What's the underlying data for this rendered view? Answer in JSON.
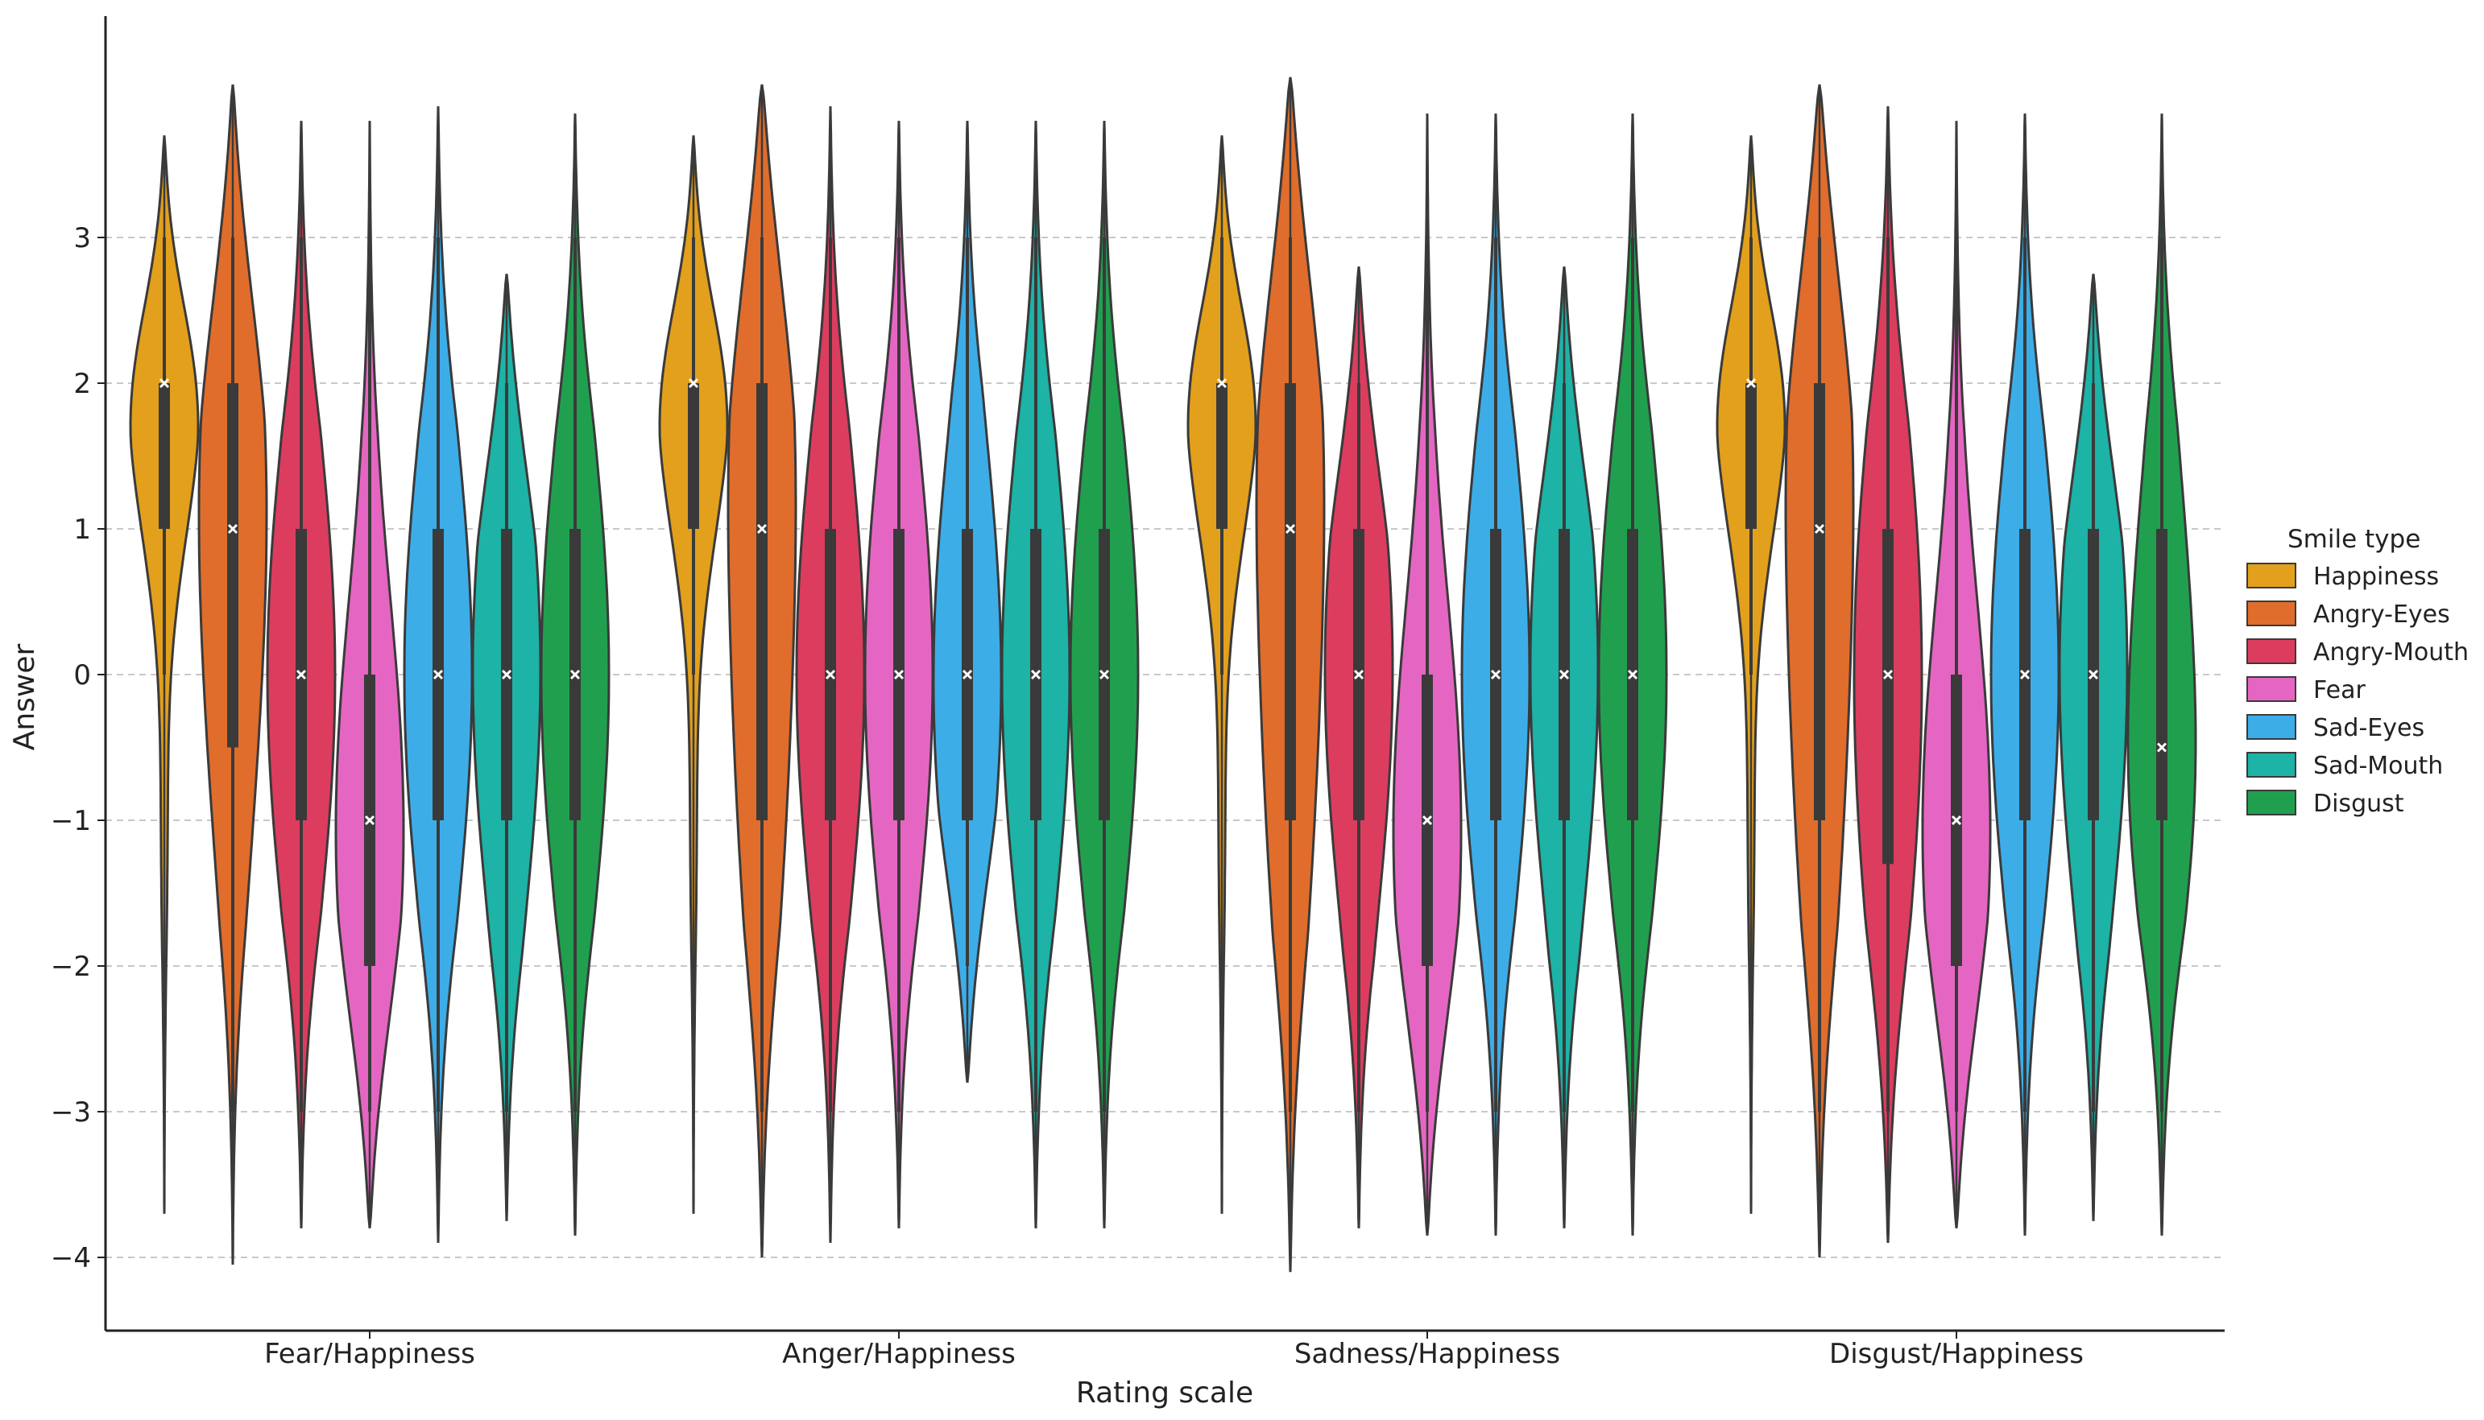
{
  "chart_data": {
    "type": "violin",
    "xlabel": "Rating scale",
    "ylabel": "Answer",
    "yticks": [
      3,
      2,
      1,
      0,
      -1,
      -2,
      -3,
      -4
    ],
    "ytick_labels": [
      "3",
      "2",
      "1",
      "0",
      "−1",
      "−2",
      "−3",
      "−4"
    ],
    "ylim": [
      -4.5,
      4.5
    ],
    "grid": "horizontal dashed",
    "legend_title": "Smile type",
    "legend_position": "right",
    "categories": [
      "Fear/Happiness",
      "Anger/Happiness",
      "Sadness/Happiness",
      "Disgust/Happiness"
    ],
    "series": [
      {
        "name": "Happiness",
        "color": "#E3A01C",
        "min": [
          -3.7,
          -3.7,
          -3.7,
          -3.7
        ],
        "max": [
          3.7,
          3.7,
          3.7,
          3.7
        ],
        "q1": [
          1,
          1,
          1,
          1
        ],
        "median": [
          2,
          2,
          2,
          2
        ],
        "q3": [
          2,
          2,
          2,
          2
        ],
        "whisker_low": [
          0,
          0,
          0,
          0
        ],
        "whisker_high": [
          3,
          3,
          3,
          3
        ]
      },
      {
        "name": "Angry-Eyes",
        "color": "#E06D2C",
        "min": [
          -4.05,
          -4.0,
          -4.1,
          -4.0
        ],
        "max": [
          4.05,
          4.05,
          4.1,
          4.05
        ],
        "q1": [
          -0.5,
          -1,
          -1,
          -1
        ],
        "median": [
          1,
          1,
          1,
          1
        ],
        "q3": [
          2,
          2,
          2,
          2
        ],
        "whisker_low": [
          -3,
          -3,
          -3,
          -3
        ],
        "whisker_high": [
          3,
          3,
          3,
          3
        ]
      },
      {
        "name": "Angry-Mouth",
        "color": "#DC3D5E",
        "min": [
          -3.8,
          -3.9,
          -3.8,
          -3.9
        ],
        "max": [
          3.8,
          3.9,
          2.8,
          3.9
        ],
        "q1": [
          -1,
          -1,
          -1,
          -1.3
        ],
        "median": [
          0,
          0,
          0,
          0
        ],
        "q3": [
          1,
          1,
          1,
          1
        ],
        "whisker_low": [
          -3,
          -3,
          -3,
          -3
        ],
        "whisker_high": [
          3,
          3,
          2,
          3
        ]
      },
      {
        "name": "Fear",
        "color": "#E566C2",
        "min": [
          -3.8,
          -3.8,
          -3.85,
          -3.8
        ],
        "max": [
          3.8,
          3.8,
          3.85,
          3.8
        ],
        "q1": [
          -2,
          -1,
          -2,
          -2
        ],
        "median": [
          -1,
          0,
          -1,
          -1
        ],
        "q3": [
          0,
          1,
          0,
          0
        ],
        "whisker_low": [
          -3,
          -3,
          -3,
          -3
        ],
        "whisker_high": [
          3,
          3,
          3,
          3
        ]
      },
      {
        "name": "Sad-Eyes",
        "color": "#3DADE8",
        "min": [
          -3.9,
          -2.8,
          -3.85,
          -3.85
        ],
        "max": [
          3.9,
          3.8,
          3.85,
          3.85
        ],
        "q1": [
          -1,
          -1,
          -1,
          -1
        ],
        "median": [
          0,
          0,
          0,
          0
        ],
        "q3": [
          1,
          1,
          1,
          1
        ],
        "whisker_low": [
          -3,
          -2,
          -3,
          -3
        ],
        "whisker_high": [
          3,
          3,
          3,
          3
        ]
      },
      {
        "name": "Sad-Mouth",
        "color": "#1DB3A6",
        "min": [
          -3.75,
          -3.8,
          -3.8,
          -3.75
        ],
        "max": [
          2.75,
          3.8,
          2.8,
          2.75
        ],
        "q1": [
          -1,
          -1,
          -1,
          -1
        ],
        "median": [
          0,
          0,
          0,
          0
        ],
        "q3": [
          1,
          1,
          1,
          1
        ],
        "whisker_low": [
          -3,
          -3,
          -3,
          -3
        ],
        "whisker_high": [
          2,
          3,
          2,
          2
        ]
      },
      {
        "name": "Disgust",
        "color": "#20A04F",
        "min": [
          -3.85,
          -3.8,
          -3.85,
          -3.85
        ],
        "max": [
          3.85,
          3.8,
          3.85,
          3.85
        ],
        "q1": [
          -1,
          -1,
          -1,
          -1
        ],
        "median": [
          0,
          0,
          0,
          -0.5
        ],
        "q3": [
          1,
          1,
          1,
          1
        ],
        "whisker_low": [
          -3,
          -3,
          -3,
          -3
        ],
        "whisker_high": [
          3,
          3,
          3,
          3
        ]
      }
    ]
  }
}
